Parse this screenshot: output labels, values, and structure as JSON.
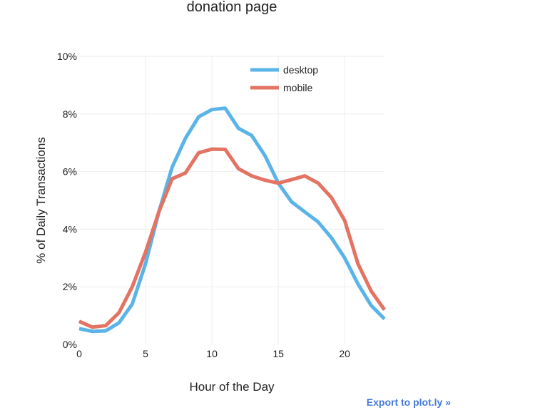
{
  "chart_data": {
    "type": "line",
    "title": "donation page",
    "xlabel": "Hour of the Day",
    "ylabel": "% of Daily Transactions",
    "xlim": [
      0,
      23
    ],
    "ylim": [
      0,
      10
    ],
    "x_ticks": [
      0,
      5,
      10,
      15,
      20
    ],
    "y_ticks": [
      0,
      2,
      4,
      6,
      8,
      10
    ],
    "y_tick_labels": [
      "0%",
      "2%",
      "4%",
      "6%",
      "8%",
      "10%"
    ],
    "grid": true,
    "legend_position": "top-right",
    "x": [
      0,
      1,
      2,
      3,
      4,
      5,
      6,
      7,
      8,
      9,
      10,
      11,
      12,
      13,
      14,
      15,
      16,
      17,
      18,
      19,
      20,
      21,
      22,
      23
    ],
    "series": [
      {
        "name": "desktop",
        "color": "#5ab4e8",
        "values": [
          0.55,
          0.45,
          0.47,
          0.75,
          1.4,
          2.8,
          4.6,
          6.15,
          7.15,
          7.9,
          8.15,
          8.2,
          7.5,
          7.25,
          6.55,
          5.6,
          4.95,
          4.6,
          4.25,
          3.7,
          3.0,
          2.1,
          1.35,
          0.88
        ],
        "line_width": 5
      },
      {
        "name": "mobile",
        "color": "#e37362",
        "values": [
          0.8,
          0.6,
          0.65,
          1.1,
          2.0,
          3.2,
          4.6,
          5.75,
          5.95,
          6.65,
          6.78,
          6.77,
          6.1,
          5.85,
          5.7,
          5.6,
          5.72,
          5.85,
          5.6,
          5.1,
          4.3,
          2.8,
          1.85,
          1.2
        ],
        "line_width": 5
      }
    ]
  },
  "export_link": {
    "label": "Export to plot.ly »"
  }
}
